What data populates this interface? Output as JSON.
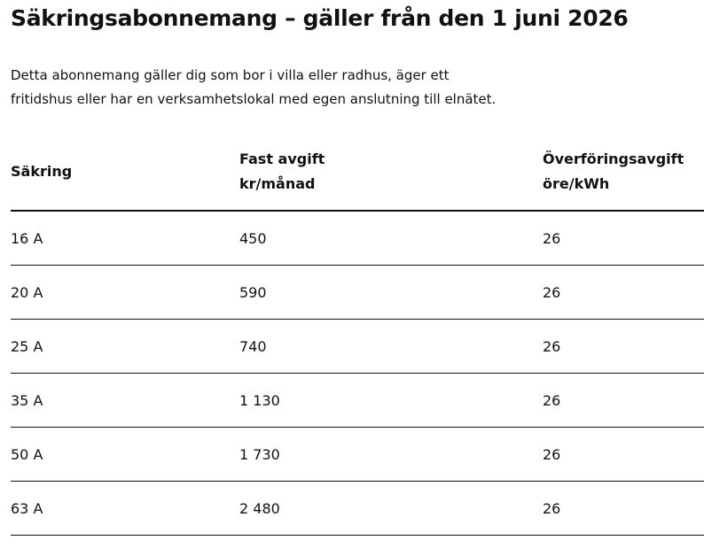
{
  "header": {
    "title": "Säkringsabonnemang – gäller från den 1 juni 2026",
    "description": [
      "Detta abonnemang gäller dig som bor i villa eller radhus, äger ett",
      "fritidshus eller har en verksamhetslokal med egen anslutning till elnätet."
    ]
  },
  "table": {
    "columns": [
      [
        "Säkring"
      ],
      [
        "Fast avgift",
        "kr/månad"
      ],
      [
        "Överföringsavgift",
        "öre/kWh"
      ]
    ],
    "rows": [
      [
        "16 A",
        "450",
        "26"
      ],
      [
        "20 A",
        "590",
        "26"
      ],
      [
        "25 A",
        "740",
        "26"
      ],
      [
        "35 A",
        "1 130",
        "26"
      ],
      [
        "50 A",
        "1 730",
        "26"
      ],
      [
        "63 A",
        "2 480",
        "26"
      ]
    ]
  }
}
